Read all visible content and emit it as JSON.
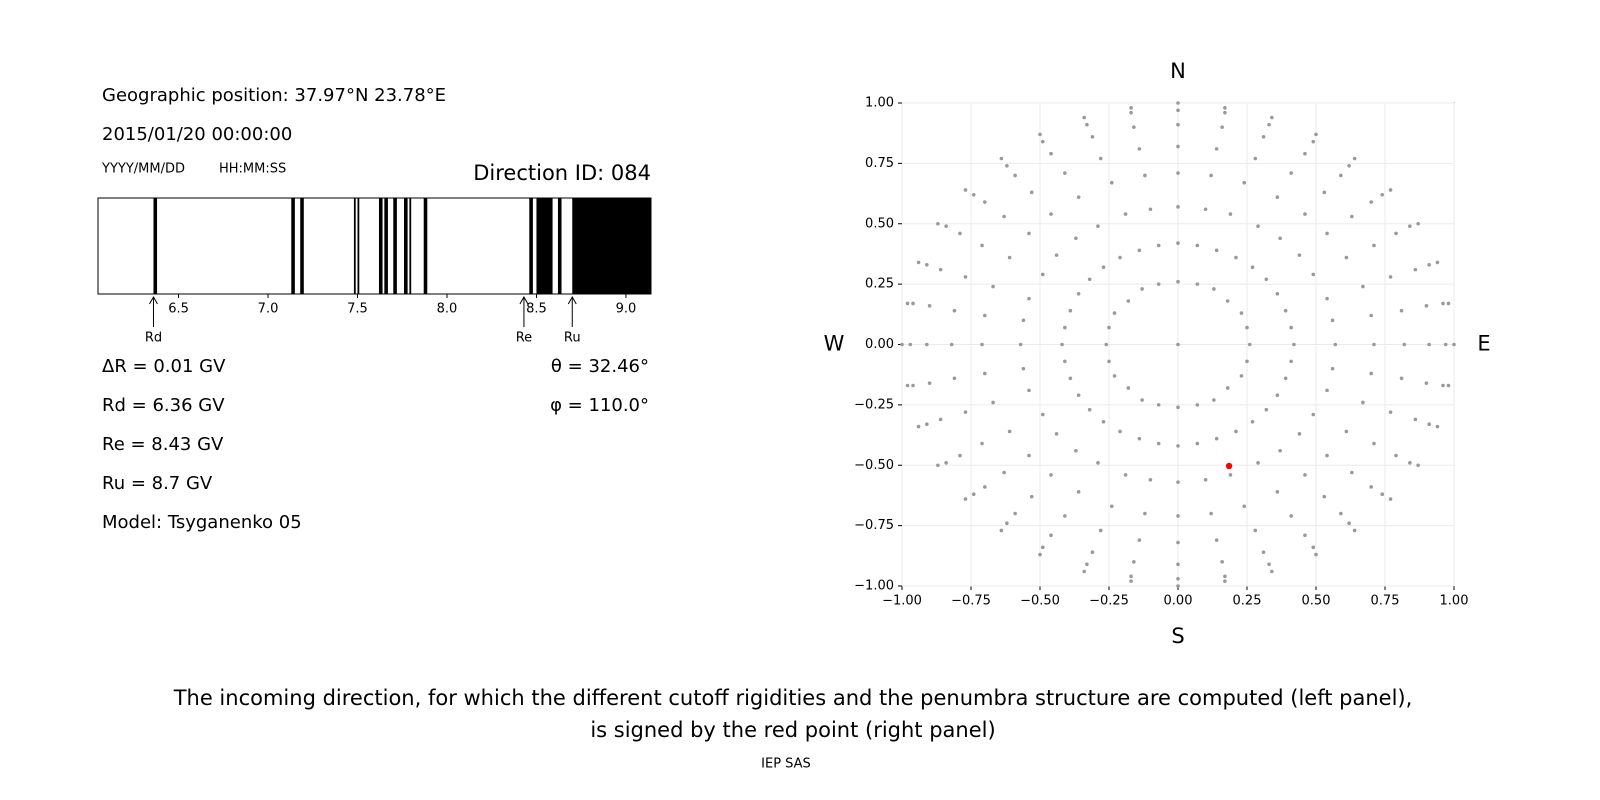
{
  "header": {
    "position": "Geographic position: 37.97°N 23.78°E",
    "datetime": "2015/01/20 00:00:00",
    "date_format": "YYYY/MM/DD",
    "time_format": "HH:MM:SS",
    "direction_id": "Direction ID: 084"
  },
  "results": {
    "left": [
      "ΔR = 0.01 GV",
      "Rd = 6.36 GV",
      "Re = 8.43 GV",
      "Ru = 8.7 GV",
      "Model: Tsyganenko 05"
    ],
    "right": [
      "θ = 32.46°",
      "φ = 110.0°"
    ]
  },
  "chart_data": [
    {
      "type": "penumbra",
      "color": "#000000",
      "xlim": [
        6.05,
        9.14
      ],
      "xticks": [
        6.5,
        {
          "value": 7,
          "label": "7.0"
        },
        7.5,
        {
          "value": 8,
          "label": "8.0"
        },
        8.5,
        {
          "value": 9,
          "label": "9.0"
        }
      ],
      "bands": [
        [
          6.36,
          6.38
        ],
        [
          7.13,
          7.15
        ],
        [
          7.18,
          7.2
        ],
        [
          7.48,
          7.49
        ],
        [
          7.5,
          7.51
        ],
        [
          7.62,
          7.64
        ],
        [
          7.65,
          7.67
        ],
        [
          7.7,
          7.72
        ],
        [
          7.76,
          7.78
        ],
        [
          7.79,
          7.8
        ],
        [
          7.87,
          7.89
        ],
        [
          8.46,
          8.48
        ],
        [
          8.5,
          8.59
        ],
        [
          8.62,
          8.64
        ],
        [
          8.7,
          9.14
        ]
      ],
      "markers": [
        {
          "label": "Rd",
          "value": 6.36
        },
        {
          "label": "Re",
          "value": 8.43
        },
        {
          "label": "Ru",
          "value": 8.7
        }
      ]
    },
    {
      "type": "scatter",
      "grid": true,
      "xlim": [
        -1,
        1
      ],
      "ylim": [
        -1,
        1
      ],
      "xticks": [
        {
          "value": -1,
          "label": "−1.00"
        },
        {
          "value": -0.75,
          "label": "−0.75"
        },
        {
          "value": -0.5,
          "label": "−0.50"
        },
        {
          "value": -0.25,
          "label": "−0.25"
        },
        {
          "value": 0,
          "label": "0.00"
        },
        {
          "value": 0.25,
          "label": "0.25"
        },
        {
          "value": 0.5,
          "label": "0.50"
        },
        {
          "value": 0.75,
          "label": "0.75"
        },
        {
          "value": 1,
          "label": "1.00"
        }
      ],
      "yticks": [
        {
          "value": -1,
          "label": "−1.00"
        },
        {
          "value": -0.75,
          "label": "−0.75"
        },
        {
          "value": -0.5,
          "label": "−0.50"
        },
        {
          "value": -0.25,
          "label": "−0.25"
        },
        {
          "value": 0,
          "label": "0.00"
        },
        {
          "value": 0.25,
          "label": "0.25"
        },
        {
          "value": 0.5,
          "label": "0.50"
        },
        {
          "value": 0.75,
          "label": "0.75"
        },
        {
          "value": 1,
          "label": "1.00"
        }
      ],
      "compass": {
        "top": "N",
        "bottom": "S",
        "left": "W",
        "right": "E"
      },
      "series": [
        {
          "color": "#999999",
          "x": [
            0,
            0.26,
            0.25,
            0.23,
            0.18,
            0.13,
            0.07,
            0,
            -0.07,
            -0.13,
            -0.18,
            -0.23,
            -0.25,
            -0.26,
            -0.25,
            -0.23,
            -0.18,
            -0.13,
            -0.07,
            0,
            0.07,
            0.13,
            0.18,
            0.23,
            0.25,
            0.42,
            0.57,
            0.71,
            0.82,
            0.91,
            0.97,
            1,
            0.41,
            0.56,
            0.7,
            0.81,
            0.9,
            0.96,
            0.98,
            0.39,
            0.54,
            0.67,
            0.77,
            0.86,
            0.91,
            0.94,
            0.36,
            0.49,
            0.61,
            0.71,
            0.79,
            0.84,
            0.87,
            0.32,
            0.44,
            0.54,
            0.63,
            0.7,
            0.74,
            0.77,
            0.27,
            0.37,
            0.46,
            0.53,
            0.59,
            0.62,
            0.64,
            0.21,
            0.29,
            0.36,
            0.41,
            0.46,
            0.49,
            0.5,
            0.14,
            0.19,
            0.24,
            0.28,
            0.31,
            0.33,
            0.34,
            0.07,
            0.1,
            0.12,
            0.14,
            0.16,
            0.17,
            0.17,
            0,
            0,
            0,
            0,
            0,
            0,
            0,
            -0.07,
            -0.1,
            -0.12,
            -0.14,
            -0.16,
            -0.17,
            -0.17,
            -0.14,
            -0.19,
            -0.24,
            -0.28,
            -0.31,
            -0.33,
            -0.34,
            -0.21,
            -0.29,
            -0.36,
            -0.41,
            -0.46,
            -0.49,
            -0.5,
            -0.27,
            -0.37,
            -0.46,
            -0.53,
            -0.59,
            -0.62,
            -0.64,
            -0.32,
            -0.44,
            -0.54,
            -0.63,
            -0.7,
            -0.74,
            -0.77,
            -0.36,
            -0.49,
            -0.61,
            -0.71,
            -0.79,
            -0.84,
            -0.87,
            -0.39,
            -0.54,
            -0.67,
            -0.77,
            -0.86,
            -0.91,
            -0.94,
            -0.41,
            -0.56,
            -0.7,
            -0.81,
            -0.9,
            -0.96,
            -0.98,
            -0.42,
            -0.57,
            -0.71,
            -0.82,
            -0.91,
            -0.97,
            -1,
            -0.41,
            -0.56,
            -0.7,
            -0.81,
            -0.9,
            -0.96,
            -0.98,
            -0.39,
            -0.54,
            -0.67,
            -0.77,
            -0.86,
            -0.91,
            -0.94,
            -0.36,
            -0.49,
            -0.61,
            -0.71,
            -0.79,
            -0.84,
            -0.87,
            -0.32,
            -0.44,
            -0.54,
            -0.63,
            -0.7,
            -0.74,
            -0.77,
            -0.27,
            -0.37,
            -0.46,
            -0.53,
            -0.59,
            -0.62,
            -0.64,
            -0.21,
            -0.29,
            -0.36,
            -0.41,
            -0.46,
            -0.49,
            -0.5,
            -0.14,
            -0.19,
            -0.24,
            -0.28,
            -0.31,
            -0.33,
            -0.34,
            -0.07,
            -0.1,
            -0.12,
            -0.14,
            -0.16,
            -0.17,
            -0.17,
            0,
            0,
            0,
            0,
            0,
            0,
            0,
            0.07,
            0.1,
            0.12,
            0.14,
            0.16,
            0.17,
            0.17,
            0.14,
            0.19,
            0.24,
            0.28,
            0.31,
            0.33,
            0.34,
            0.21,
            0.29,
            0.36,
            0.41,
            0.46,
            0.49,
            0.5,
            0.27,
            0.37,
            0.46,
            0.53,
            0.59,
            0.62,
            0.64,
            0.32,
            0.44,
            0.54,
            0.63,
            0.7,
            0.74,
            0.77,
            0.36,
            0.49,
            0.61,
            0.71,
            0.79,
            0.84,
            0.87,
            0.39,
            0.54,
            0.67,
            0.77,
            0.86,
            0.91,
            0.94,
            0.41,
            0.56,
            0.7,
            0.81,
            0.9,
            0.96,
            0.98
          ],
          "y": [
            0,
            0,
            0.07,
            0.13,
            0.18,
            0.23,
            0.25,
            0.26,
            0.25,
            0.23,
            0.18,
            0.13,
            0.07,
            0,
            -0.07,
            -0.13,
            -0.18,
            -0.23,
            -0.25,
            -0.26,
            -0.25,
            -0.23,
            -0.18,
            -0.13,
            -0.07,
            0,
            0,
            0,
            0,
            0,
            0,
            0,
            0.07,
            0.1,
            0.12,
            0.14,
            0.16,
            0.17,
            0.17,
            0.14,
            0.19,
            0.24,
            0.28,
            0.31,
            0.33,
            0.34,
            0.21,
            0.29,
            0.36,
            0.41,
            0.46,
            0.49,
            0.5,
            0.27,
            0.37,
            0.46,
            0.53,
            0.59,
            0.62,
            0.64,
            0.32,
            0.44,
            0.54,
            0.63,
            0.7,
            0.74,
            0.77,
            0.36,
            0.49,
            0.61,
            0.71,
            0.79,
            0.84,
            0.87,
            0.39,
            0.54,
            0.67,
            0.77,
            0.86,
            0.91,
            0.94,
            0.41,
            0.56,
            0.7,
            0.81,
            0.9,
            0.96,
            0.98,
            0.42,
            0.57,
            0.71,
            0.82,
            0.91,
            0.97,
            1,
            0.41,
            0.56,
            0.7,
            0.81,
            0.9,
            0.96,
            0.98,
            0.39,
            0.54,
            0.67,
            0.77,
            0.86,
            0.91,
            0.94,
            0.36,
            0.49,
            0.61,
            0.71,
            0.79,
            0.84,
            0.87,
            0.32,
            0.44,
            0.54,
            0.63,
            0.7,
            0.74,
            0.77,
            0.27,
            0.37,
            0.46,
            0.53,
            0.59,
            0.62,
            0.64,
            0.21,
            0.29,
            0.36,
            0.41,
            0.46,
            0.49,
            0.5,
            0.14,
            0.19,
            0.24,
            0.28,
            0.31,
            0.33,
            0.34,
            0.07,
            0.1,
            0.12,
            0.14,
            0.16,
            0.17,
            0.17,
            0,
            0,
            0,
            0,
            0,
            0,
            0,
            -0.07,
            -0.1,
            -0.12,
            -0.14,
            -0.16,
            -0.17,
            -0.17,
            -0.14,
            -0.19,
            -0.24,
            -0.28,
            -0.31,
            -0.33,
            -0.34,
            -0.21,
            -0.29,
            -0.36,
            -0.41,
            -0.46,
            -0.49,
            -0.5,
            -0.27,
            -0.37,
            -0.46,
            -0.53,
            -0.59,
            -0.62,
            -0.64,
            -0.32,
            -0.44,
            -0.54,
            -0.63,
            -0.7,
            -0.74,
            -0.77,
            -0.36,
            -0.49,
            -0.61,
            -0.71,
            -0.79,
            -0.84,
            -0.87,
            -0.39,
            -0.54,
            -0.67,
            -0.77,
            -0.86,
            -0.91,
            -0.94,
            -0.41,
            -0.56,
            -0.7,
            -0.81,
            -0.9,
            -0.96,
            -0.98,
            -0.42,
            -0.57,
            -0.71,
            -0.82,
            -0.91,
            -0.97,
            -1,
            -0.41,
            -0.56,
            -0.7,
            -0.81,
            -0.9,
            -0.96,
            -0.98,
            -0.39,
            -0.54,
            -0.67,
            -0.77,
            -0.86,
            -0.91,
            -0.94,
            -0.36,
            -0.49,
            -0.61,
            -0.71,
            -0.79,
            -0.84,
            -0.87,
            -0.32,
            -0.44,
            -0.54,
            -0.63,
            -0.7,
            -0.74,
            -0.77,
            -0.27,
            -0.37,
            -0.46,
            -0.53,
            -0.59,
            -0.62,
            -0.64,
            -0.21,
            -0.29,
            -0.36,
            -0.41,
            -0.46,
            -0.49,
            -0.5,
            -0.14,
            -0.19,
            -0.24,
            -0.28,
            -0.31,
            -0.33,
            -0.34,
            -0.07,
            -0.1,
            -0.12,
            -0.14,
            -0.16,
            -0.17,
            -0.17
          ]
        },
        {
          "color": "#ff0000",
          "x": [
            0.185
          ],
          "y": [
            -0.503
          ]
        }
      ]
    }
  ],
  "caption": [
    "The incoming direction, for which the different cutoff rigidities and the penumbra structure are computed (left panel),",
    "is signed by the red point (right panel)"
  ],
  "footer": "IEP SAS"
}
